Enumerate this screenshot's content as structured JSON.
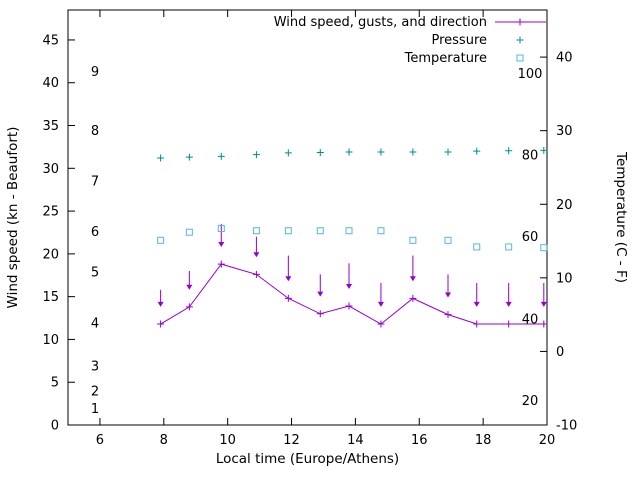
{
  "page": {
    "background": "#ffffff",
    "text_color": "#000000"
  },
  "chart_data": {
    "type": "line",
    "title": "",
    "xlabel": "Local time (Europe/Athens)",
    "ylabel_left": "Wind speed (kn - Beaufort)",
    "ylabel_right": "Temperature (C - F)",
    "grid": false,
    "legend_position": "top-right-inside",
    "xlim": [
      5,
      20
    ],
    "xticks": [
      6,
      8,
      10,
      12,
      14,
      16,
      18,
      20
    ],
    "ylim_left": [
      0,
      48.5
    ],
    "yticks_left": [
      0,
      5,
      10,
      15,
      20,
      25,
      30,
      35,
      40,
      45
    ],
    "ylim_right": [
      -10,
      46.4
    ],
    "yticks_right": [
      -10,
      0,
      10,
      20,
      30,
      40
    ],
    "beaufort_scale_labels": [
      {
        "label": "1",
        "kn": 1.9
      },
      {
        "label": "2",
        "kn": 4.0
      },
      {
        "label": "3",
        "kn": 6.9
      },
      {
        "label": "4",
        "kn": 11.9
      },
      {
        "label": "5",
        "kn": 17.9
      },
      {
        "label": "6",
        "kn": 22.6
      },
      {
        "label": "7",
        "kn": 28.5
      },
      {
        "label": "8",
        "kn": 34.4
      },
      {
        "label": "9",
        "kn": 41.3
      }
    ],
    "fahrenheit_scale_labels": [
      {
        "label": "20",
        "c": -6.7
      },
      {
        "label": "40",
        "c": 4.4
      },
      {
        "label": "60",
        "c": 15.6
      },
      {
        "label": "80",
        "c": 26.7
      },
      {
        "label": "100",
        "c": 37.8
      }
    ],
    "x": [
      7.9,
      8.8,
      9.8,
      10.9,
      11.9,
      12.9,
      13.8,
      14.8,
      15.8,
      16.9,
      17.8,
      18.8,
      19.9
    ],
    "series": [
      {
        "name": "Wind speed, gusts, and direction",
        "color": "#9400d3",
        "axis": "left",
        "marker": "plus-line-with-down-arrows",
        "wind_kn": [
          11.8,
          13.8,
          18.8,
          17.6,
          14.8,
          13.0,
          13.9,
          11.8,
          14.8,
          12.9,
          11.8,
          11.8,
          11.8
        ],
        "gust_kn": [
          15.8,
          18.0,
          23.5,
          22.0,
          19.8,
          17.6,
          18.9,
          16.6,
          19.8,
          17.6,
          16.6,
          16.6,
          16.6
        ],
        "direction_note": "all arrows point down"
      },
      {
        "name": "Pressure",
        "color": "#008c8c",
        "axis": "left-plot-units",
        "marker": "plus",
        "values": [
          31.2,
          31.3,
          31.4,
          31.6,
          31.8,
          31.85,
          31.9,
          31.9,
          31.9,
          31.9,
          32.0,
          32.05,
          32.1
        ]
      },
      {
        "name": "Temperature",
        "color": "#56b4e9",
        "axis": "right",
        "marker": "open-square",
        "values_c": [
          15.1,
          16.2,
          16.7,
          16.4,
          16.4,
          16.4,
          16.4,
          16.4,
          15.1,
          15.1,
          14.2,
          14.2,
          14.1
        ]
      }
    ]
  }
}
